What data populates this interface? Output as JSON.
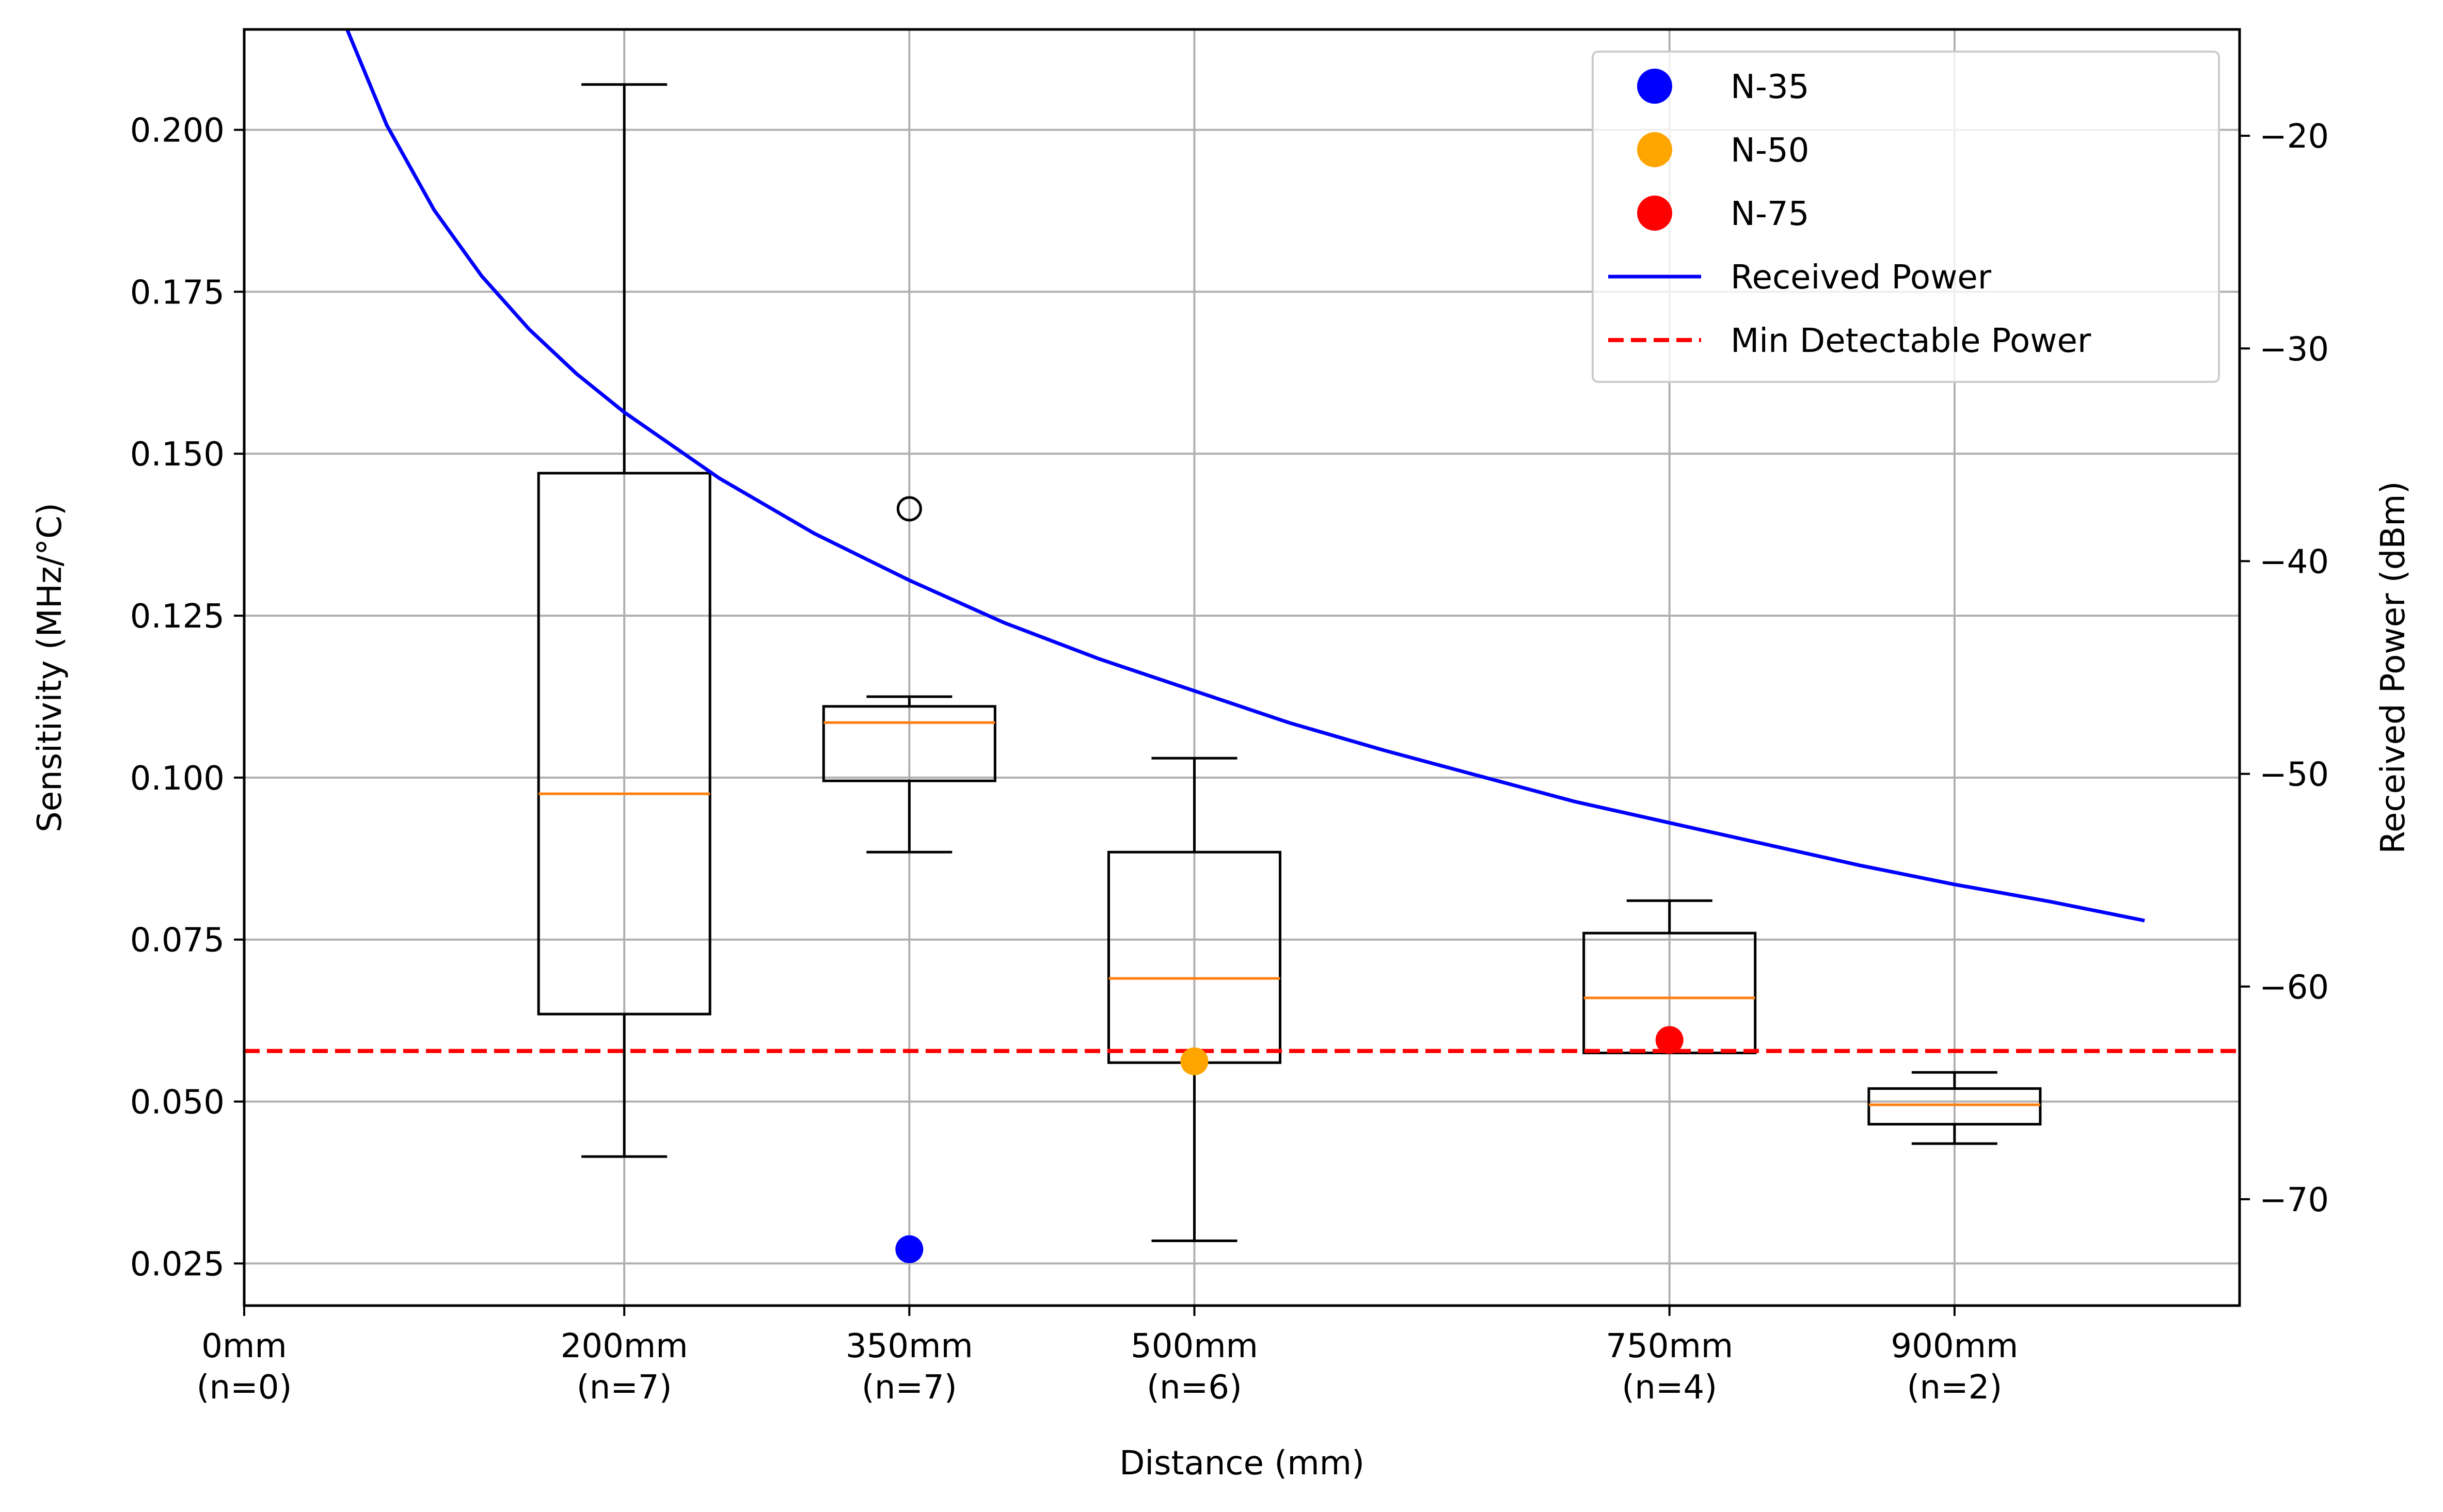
{
  "chart_data": {
    "type": "box",
    "xlabel": "Distance (mm)",
    "ylabel": "Sensitivity (MHz/°C)",
    "y2label": "Received Power (dBm)",
    "xlim": [
      0,
      1050
    ],
    "ylim": [
      0.0185,
      0.2155
    ],
    "y2lim": [
      -75,
      -15
    ],
    "y_ticks": [
      "0.025",
      "0.050",
      "0.075",
      "0.100",
      "0.125",
      "0.150",
      "0.175",
      "0.200"
    ],
    "y2_ticks": [
      "−70",
      "−60",
      "−50",
      "−40",
      "−30",
      "−20"
    ],
    "x_ticks": [
      {
        "x": 0,
        "line1": "0mm",
        "line2": "(n=0)"
      },
      {
        "x": 200,
        "line1": "200mm",
        "line2": "(n=7)"
      },
      {
        "x": 350,
        "line1": "350mm",
        "line2": "(n=7)"
      },
      {
        "x": 500,
        "line1": "500mm",
        "line2": "(n=6)"
      },
      {
        "x": 750,
        "line1": "750mm",
        "line2": "(n=4)"
      },
      {
        "x": 900,
        "line1": "900mm",
        "line2": "(n=2)"
      }
    ],
    "grid": true,
    "boxes": [
      {
        "x": 200,
        "whislo": 0.0415,
        "q1": 0.0635,
        "med": 0.0975,
        "q3": 0.147,
        "whishi": 0.207,
        "fliers": []
      },
      {
        "x": 350,
        "whislo": 0.0885,
        "q1": 0.0995,
        "med": 0.1085,
        "q3": 0.111,
        "whishi": 0.1125,
        "fliers": [
          0.1415
        ]
      },
      {
        "x": 500,
        "whislo": 0.0285,
        "q1": 0.056,
        "med": 0.069,
        "q3": 0.0885,
        "whishi": 0.103,
        "fliers": []
      },
      {
        "x": 750,
        "whislo": 0.0575,
        "q1": 0.0575,
        "med": 0.066,
        "q3": 0.076,
        "whishi": 0.081,
        "fliers": []
      },
      {
        "x": 900,
        "whislo": 0.0435,
        "q1": 0.0465,
        "med": 0.0495,
        "q3": 0.052,
        "whishi": 0.0545,
        "fliers": []
      }
    ],
    "points": [
      {
        "name": "N-35",
        "color": "#0000ff",
        "x": 350,
        "y": 0.0272
      },
      {
        "name": "N-50",
        "color": "#ffa500",
        "x": 500,
        "y": 0.0562
      },
      {
        "name": "N-75",
        "color": "#ff0000",
        "x": 750,
        "y": 0.0595
      }
    ],
    "received_power": {
      "name": "Received Power",
      "color": "#0000ff",
      "axis": "right",
      "x": [
        50,
        75,
        100,
        125,
        150,
        175,
        200,
        250,
        300,
        350,
        400,
        450,
        500,
        550,
        600,
        650,
        700,
        750,
        800,
        850,
        900,
        950,
        1000
      ],
      "y": [
        -14.1,
        -19.5,
        -23.5,
        -26.6,
        -29.1,
        -31.2,
        -33.0,
        -36.1,
        -38.7,
        -40.9,
        -42.9,
        -44.6,
        -46.1,
        -47.6,
        -48.9,
        -50.1,
        -51.3,
        -52.3,
        -53.3,
        -54.3,
        -55.2,
        -56.0,
        -56.9
      ]
    },
    "min_detectable": {
      "name": "Min Detectable Power",
      "color": "#ff0000",
      "axis": "left",
      "y": 0.0578
    },
    "legend": {
      "position": "upper right",
      "entries": [
        {
          "label": "N-35",
          "kind": "marker",
          "color": "#0000ff"
        },
        {
          "label": "N-50",
          "kind": "marker",
          "color": "#ffa500"
        },
        {
          "label": "N-75",
          "kind": "marker",
          "color": "#ff0000"
        },
        {
          "label": "Received Power",
          "kind": "line",
          "color": "#0000ff"
        },
        {
          "label": "Min Detectable Power",
          "kind": "dashed",
          "color": "#ff0000"
        }
      ]
    },
    "colors": {
      "box": "#000000",
      "median": "#ff7f0e",
      "grid": "#b0b0b0"
    }
  }
}
